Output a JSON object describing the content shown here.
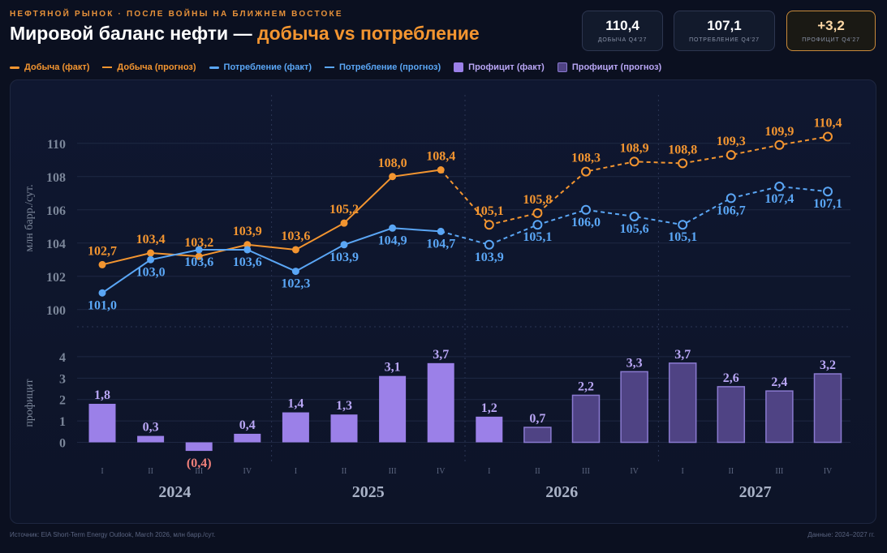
{
  "header": {
    "kicker": "НЕФТЯНОЙ РЫНОК · ПОСЛЕ ВОЙНЫ НА БЛИЖНЕМ ВОСТОКЕ",
    "title_main": "Мировой баланс нефти — ",
    "title_accent": "добыча vs потребление"
  },
  "kpis": [
    {
      "value": "110,4",
      "label": "ДОБЫЧА Q4'27"
    },
    {
      "value": "107,1",
      "label": "ПОТРЕБЛЕНИЕ Q4'27"
    },
    {
      "value": "+3,2",
      "label": "ПРОФИЦИТ Q4'27"
    }
  ],
  "legend": {
    "prod_fact": "Добыча (факт)",
    "prod_fc": "Добыча (прогноз)",
    "cons_fact": "Потребление (факт)",
    "cons_fc": "Потребление (прогноз)",
    "surplus_fact": "Профицит (факт)",
    "surplus_fc": "Профицит (прогноз)"
  },
  "colors": {
    "production": "#f39530",
    "consumption": "#5aa6f5",
    "surplus_fact": "#9b80e8",
    "surplus_fc": "#4f4384",
    "negative": "#f0807a",
    "axis_text": "#7b8699"
  },
  "chart_data": [
    {
      "type": "line",
      "ylabel": "млн барр./сут.",
      "ylim": [
        99.5,
        111.5
      ],
      "yticks": [
        100,
        102,
        104,
        106,
        108,
        110
      ],
      "categories": [
        "I",
        "II",
        "III",
        "IV",
        "I",
        "II",
        "III",
        "IV",
        "I",
        "II",
        "III",
        "IV",
        "I",
        "II",
        "III",
        "IV"
      ],
      "years": [
        "2024",
        "2025",
        "2026",
        "2027"
      ],
      "forecast_from_index": 8,
      "series": [
        {
          "name": "Добыча",
          "values": [
            102.7,
            103.4,
            103.2,
            103.9,
            103.6,
            105.2,
            108.0,
            108.4,
            105.1,
            105.8,
            108.3,
            108.9,
            108.8,
            109.3,
            109.9,
            110.4
          ],
          "labels": [
            "102,7",
            "103,4",
            "103,2",
            "103,9",
            "103,6",
            "105,2",
            "108,0",
            "108,4",
            "105,1",
            "105,8",
            "108,3",
            "108,9",
            "108,8",
            "109,3",
            "109,9",
            "110,4"
          ]
        },
        {
          "name": "Потребление",
          "values": [
            101.0,
            103.0,
            103.6,
            103.6,
            102.3,
            103.9,
            104.9,
            104.7,
            103.9,
            105.1,
            106.0,
            105.6,
            105.1,
            106.7,
            107.4,
            107.1
          ],
          "labels": [
            "101,0",
            "103,0",
            "103,6",
            "103,6",
            "102,3",
            "103,9",
            "104,9",
            "104,7",
            "103,9",
            "105,1",
            "106,0",
            "105,6",
            "105,1",
            "106,7",
            "107,4",
            "107,1"
          ]
        }
      ]
    },
    {
      "type": "bar",
      "ylabel": "профицит",
      "ylim": [
        -0.7,
        4.3
      ],
      "yticks": [
        0,
        1,
        2,
        3,
        4
      ],
      "forecast_from_index": 9,
      "values": [
        1.8,
        0.3,
        -0.4,
        0.4,
        1.4,
        1.3,
        3.1,
        3.7,
        1.2,
        0.7,
        2.2,
        3.3,
        3.7,
        2.6,
        2.4,
        3.2
      ],
      "labels": [
        "1,8",
        "0,3",
        "(0,4)",
        "0,4",
        "1,4",
        "1,3",
        "3,1",
        "3,7",
        "1,2",
        "0,7",
        "2,2",
        "3,3",
        "3,7",
        "2,6",
        "2,4",
        "3,2"
      ]
    }
  ],
  "footer": {
    "source": "Источник: EIA Short-Term Energy Outlook, March 2026, млн барр./сут.",
    "period": "Данные: 2024–2027 гг."
  }
}
